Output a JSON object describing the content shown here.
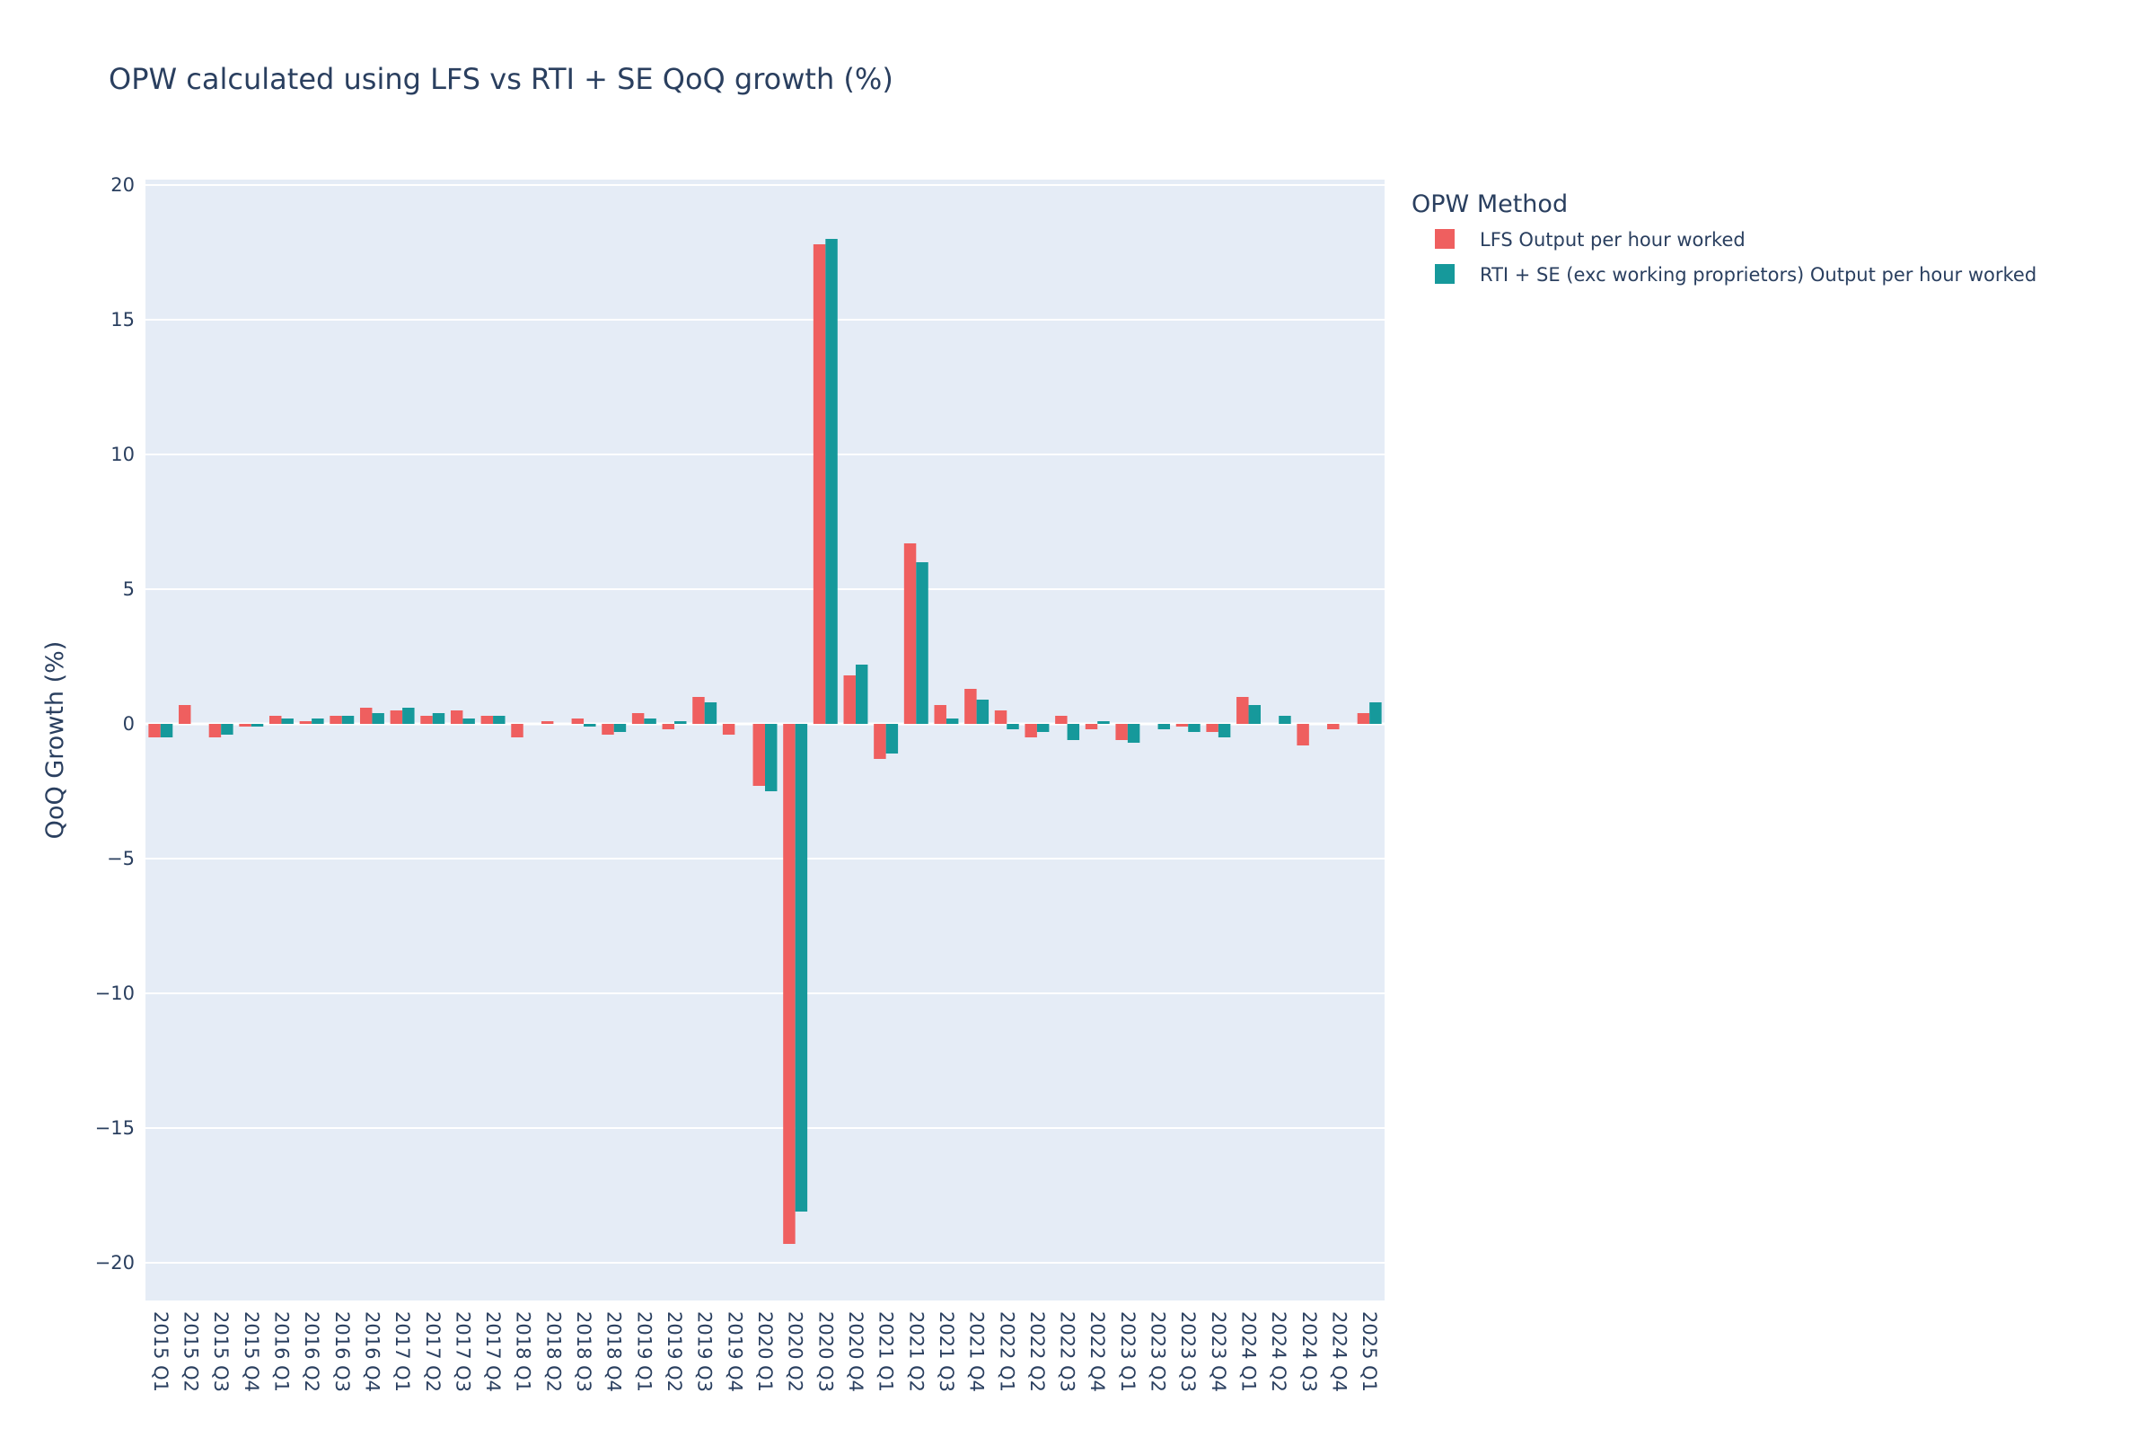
{
  "chart_data": {
    "type": "bar",
    "title": "OPW calculated using LFS vs RTI + SE QoQ growth (%)",
    "xlabel": "",
    "ylabel": "QoQ Growth (%)",
    "ylim": [
      -21.4,
      20.2
    ],
    "yticks": [
      20,
      15,
      10,
      5,
      0,
      -5,
      -10,
      -15,
      -20
    ],
    "ytick_labels": [
      "20",
      "15",
      "10",
      "5",
      "0",
      "−5",
      "−10",
      "−15",
      "−20"
    ],
    "legend": {
      "title": "OPW Method",
      "position": "right"
    },
    "categories": [
      "2015 Q1",
      "2015 Q2",
      "2015 Q3",
      "2015 Q4",
      "2016 Q1",
      "2016 Q2",
      "2016 Q3",
      "2016 Q4",
      "2017 Q1",
      "2017 Q2",
      "2017 Q3",
      "2017 Q4",
      "2018 Q1",
      "2018 Q2",
      "2018 Q3",
      "2018 Q4",
      "2019 Q1",
      "2019 Q2",
      "2019 Q3",
      "2019 Q4",
      "2020 Q1",
      "2020 Q2",
      "2020 Q3",
      "2020 Q4",
      "2021 Q1",
      "2021 Q2",
      "2021 Q3",
      "2021 Q4",
      "2022 Q1",
      "2022 Q2",
      "2022 Q3",
      "2022 Q4",
      "2023 Q1",
      "2023 Q2",
      "2023 Q3",
      "2023 Q4",
      "2024 Q1",
      "2024 Q2",
      "2024 Q3",
      "2024 Q4",
      "2025 Q1"
    ],
    "series": [
      {
        "name": "LFS Output per hour worked",
        "color": "#ef5f5f",
        "values": [
          -0.5,
          0.7,
          -0.5,
          -0.1,
          0.3,
          0.1,
          0.3,
          0.6,
          0.5,
          0.3,
          0.5,
          0.3,
          -0.5,
          0.1,
          0.2,
          -0.4,
          0.4,
          -0.2,
          1.0,
          -0.4,
          -2.3,
          -19.3,
          17.8,
          1.8,
          -1.3,
          6.7,
          0.7,
          1.3,
          0.5,
          -0.5,
          0.3,
          -0.2,
          -0.6,
          0.0,
          -0.1,
          -0.3,
          1.0,
          0.0,
          -0.8,
          -0.2,
          0.4
        ]
      },
      {
        "name": "RTI + SE (exc working proprietors) Output per hour worked",
        "color": "#16999b",
        "values": [
          -0.5,
          0.0,
          -0.4,
          -0.1,
          0.2,
          0.2,
          0.3,
          0.4,
          0.6,
          0.4,
          0.2,
          0.3,
          0.0,
          0.0,
          -0.1,
          -0.3,
          0.2,
          0.1,
          0.8,
          0.0,
          -2.5,
          -18.1,
          18.0,
          2.2,
          -1.1,
          6.0,
          0.2,
          0.9,
          -0.2,
          -0.3,
          -0.6,
          0.1,
          -0.7,
          -0.2,
          -0.3,
          -0.5,
          0.7,
          0.3,
          0.0,
          0.0,
          0.8
        ]
      }
    ]
  }
}
